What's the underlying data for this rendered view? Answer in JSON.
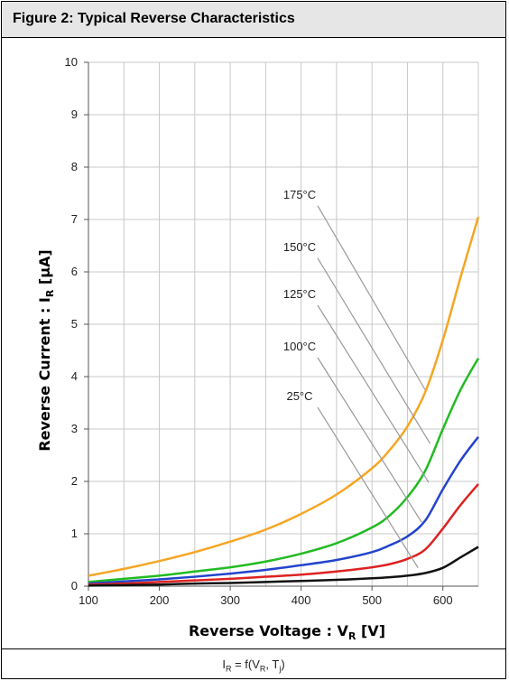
{
  "header": {
    "title": "Figure 2: Typical Reverse Characteristics"
  },
  "footer": {
    "formula_main": "I",
    "formula_sub1": "R",
    "formula_mid": " = f(V",
    "formula_sub2": "R",
    "formula_mid2": ", T",
    "formula_sub3": "j",
    "formula_end": ")"
  },
  "chart_data": {
    "type": "line",
    "xlabel_main": "Reverse Voltage : V",
    "xlabel_sub": "R",
    "xlabel_unit": " [V]",
    "ylabel_main": "Reverse Current : I",
    "ylabel_sub": "R",
    "ylabel_unit": " [µA]",
    "xlim": [
      100,
      650
    ],
    "ylim": [
      0,
      10
    ],
    "x_ticks": [
      100,
      200,
      300,
      400,
      500,
      600
    ],
    "y_ticks": [
      0,
      1,
      2,
      3,
      4,
      5,
      6,
      7,
      8,
      9,
      10
    ],
    "grid": true,
    "series": [
      {
        "name": "175°C",
        "color": "#f5a623",
        "x": [
          100,
          150,
          200,
          250,
          300,
          350,
          400,
          450,
          500,
          525,
          550,
          575,
          600,
          625,
          650
        ],
        "y": [
          0.2,
          0.33,
          0.48,
          0.65,
          0.85,
          1.08,
          1.38,
          1.75,
          2.25,
          2.6,
          3.05,
          3.7,
          4.7,
          5.9,
          7.05
        ]
      },
      {
        "name": "150°C",
        "color": "#22bb22",
        "x": [
          100,
          150,
          200,
          250,
          300,
          350,
          400,
          450,
          500,
          525,
          550,
          575,
          600,
          625,
          650
        ],
        "y": [
          0.08,
          0.14,
          0.2,
          0.28,
          0.36,
          0.47,
          0.62,
          0.82,
          1.12,
          1.35,
          1.7,
          2.2,
          3.0,
          3.75,
          4.35
        ]
      },
      {
        "name": "125°C",
        "color": "#2244cc",
        "x": [
          100,
          150,
          200,
          250,
          300,
          350,
          400,
          450,
          500,
          525,
          550,
          575,
          600,
          625,
          650
        ],
        "y": [
          0.05,
          0.09,
          0.13,
          0.18,
          0.24,
          0.31,
          0.4,
          0.5,
          0.65,
          0.78,
          0.95,
          1.25,
          1.85,
          2.4,
          2.85
        ]
      },
      {
        "name": "100°C",
        "color": "#dd2222",
        "x": [
          100,
          150,
          200,
          250,
          300,
          350,
          400,
          450,
          500,
          525,
          550,
          575,
          600,
          625,
          650
        ],
        "y": [
          0.03,
          0.05,
          0.08,
          0.11,
          0.14,
          0.18,
          0.22,
          0.28,
          0.36,
          0.42,
          0.52,
          0.7,
          1.1,
          1.55,
          1.95
        ]
      },
      {
        "name": "25°C",
        "color": "#111111",
        "x": [
          100,
          150,
          200,
          250,
          300,
          350,
          400,
          450,
          500,
          525,
          550,
          575,
          600,
          625,
          650
        ],
        "y": [
          0.01,
          0.02,
          0.03,
          0.05,
          0.06,
          0.08,
          0.1,
          0.12,
          0.15,
          0.17,
          0.2,
          0.25,
          0.35,
          0.55,
          0.75
        ]
      }
    ],
    "label_color": "#999999"
  }
}
